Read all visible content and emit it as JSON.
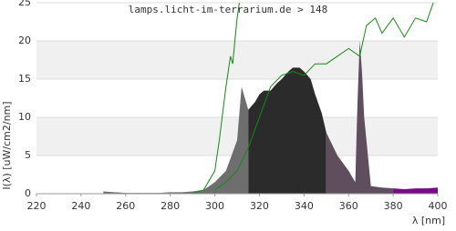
{
  "chart_data": {
    "type": "area",
    "title": "lamps.licht-im-terrarium.de > 148",
    "x_label": "λ [nm]",
    "y_label": "I(λ)  [uW/cm2/nm]",
    "xlim": [
      220,
      400
    ],
    "xticks": [
      220,
      240,
      260,
      280,
      300,
      320,
      340,
      360,
      380,
      400
    ],
    "ylim": [
      0,
      25
    ],
    "yticks": [
      0,
      5,
      10,
      15,
      20,
      25
    ],
    "grid": true,
    "series": [
      {
        "color": "#6e6e6e",
        "x": [
          250,
          255,
          260,
          265,
          270,
          275,
          280,
          285,
          290,
          295,
          300,
          305,
          310,
          312,
          315
        ],
        "values": [
          0.3,
          0.2,
          0.1,
          0.1,
          0.1,
          0.1,
          0.2,
          0.2,
          0.3,
          0.5,
          1.5,
          3,
          7,
          14,
          11
        ]
      },
      {
        "color": "#2b2b2b",
        "x": [
          315,
          318,
          320,
          322,
          325,
          328,
          330,
          333,
          335,
          338,
          340,
          343,
          345,
          348,
          350
        ],
        "values": [
          11,
          12,
          13,
          13.5,
          13.5,
          14.5,
          15,
          16,
          16.5,
          16.5,
          16,
          15,
          13,
          10.5,
          8
        ]
      },
      {
        "color": "#5e4e5e",
        "x": [
          350,
          355,
          360,
          363,
          364,
          365,
          366,
          367,
          370,
          375,
          380
        ],
        "values": [
          8,
          5,
          3,
          1.5,
          12,
          20,
          16,
          10,
          1,
          0.8,
          0.7
        ]
      },
      {
        "color": "#7a0a8a",
        "x": [
          380,
          385,
          390,
          395,
          400
        ],
        "values": [
          0.7,
          0.6,
          0.7,
          0.7,
          0.8
        ]
      }
    ],
    "lines": [
      {
        "color": "#138a13",
        "x": [
          290,
          295,
          300,
          302,
          305,
          307,
          308,
          310,
          311
        ],
        "values": [
          0,
          0.5,
          3,
          7,
          14,
          18,
          17,
          23,
          25
        ]
      },
      {
        "color": "#138a13",
        "x": [
          300,
          305,
          310,
          315,
          320,
          325,
          330,
          335,
          340,
          345,
          350,
          355,
          360,
          365,
          368,
          372,
          375,
          380,
          385,
          390,
          395,
          398
        ],
        "values": [
          0.5,
          1.5,
          3,
          6,
          10,
          14,
          15.5,
          16,
          15.5,
          17,
          17,
          18,
          19,
          18,
          22,
          23,
          21,
          23,
          20.5,
          23,
          22.5,
          25
        ]
      }
    ]
  }
}
